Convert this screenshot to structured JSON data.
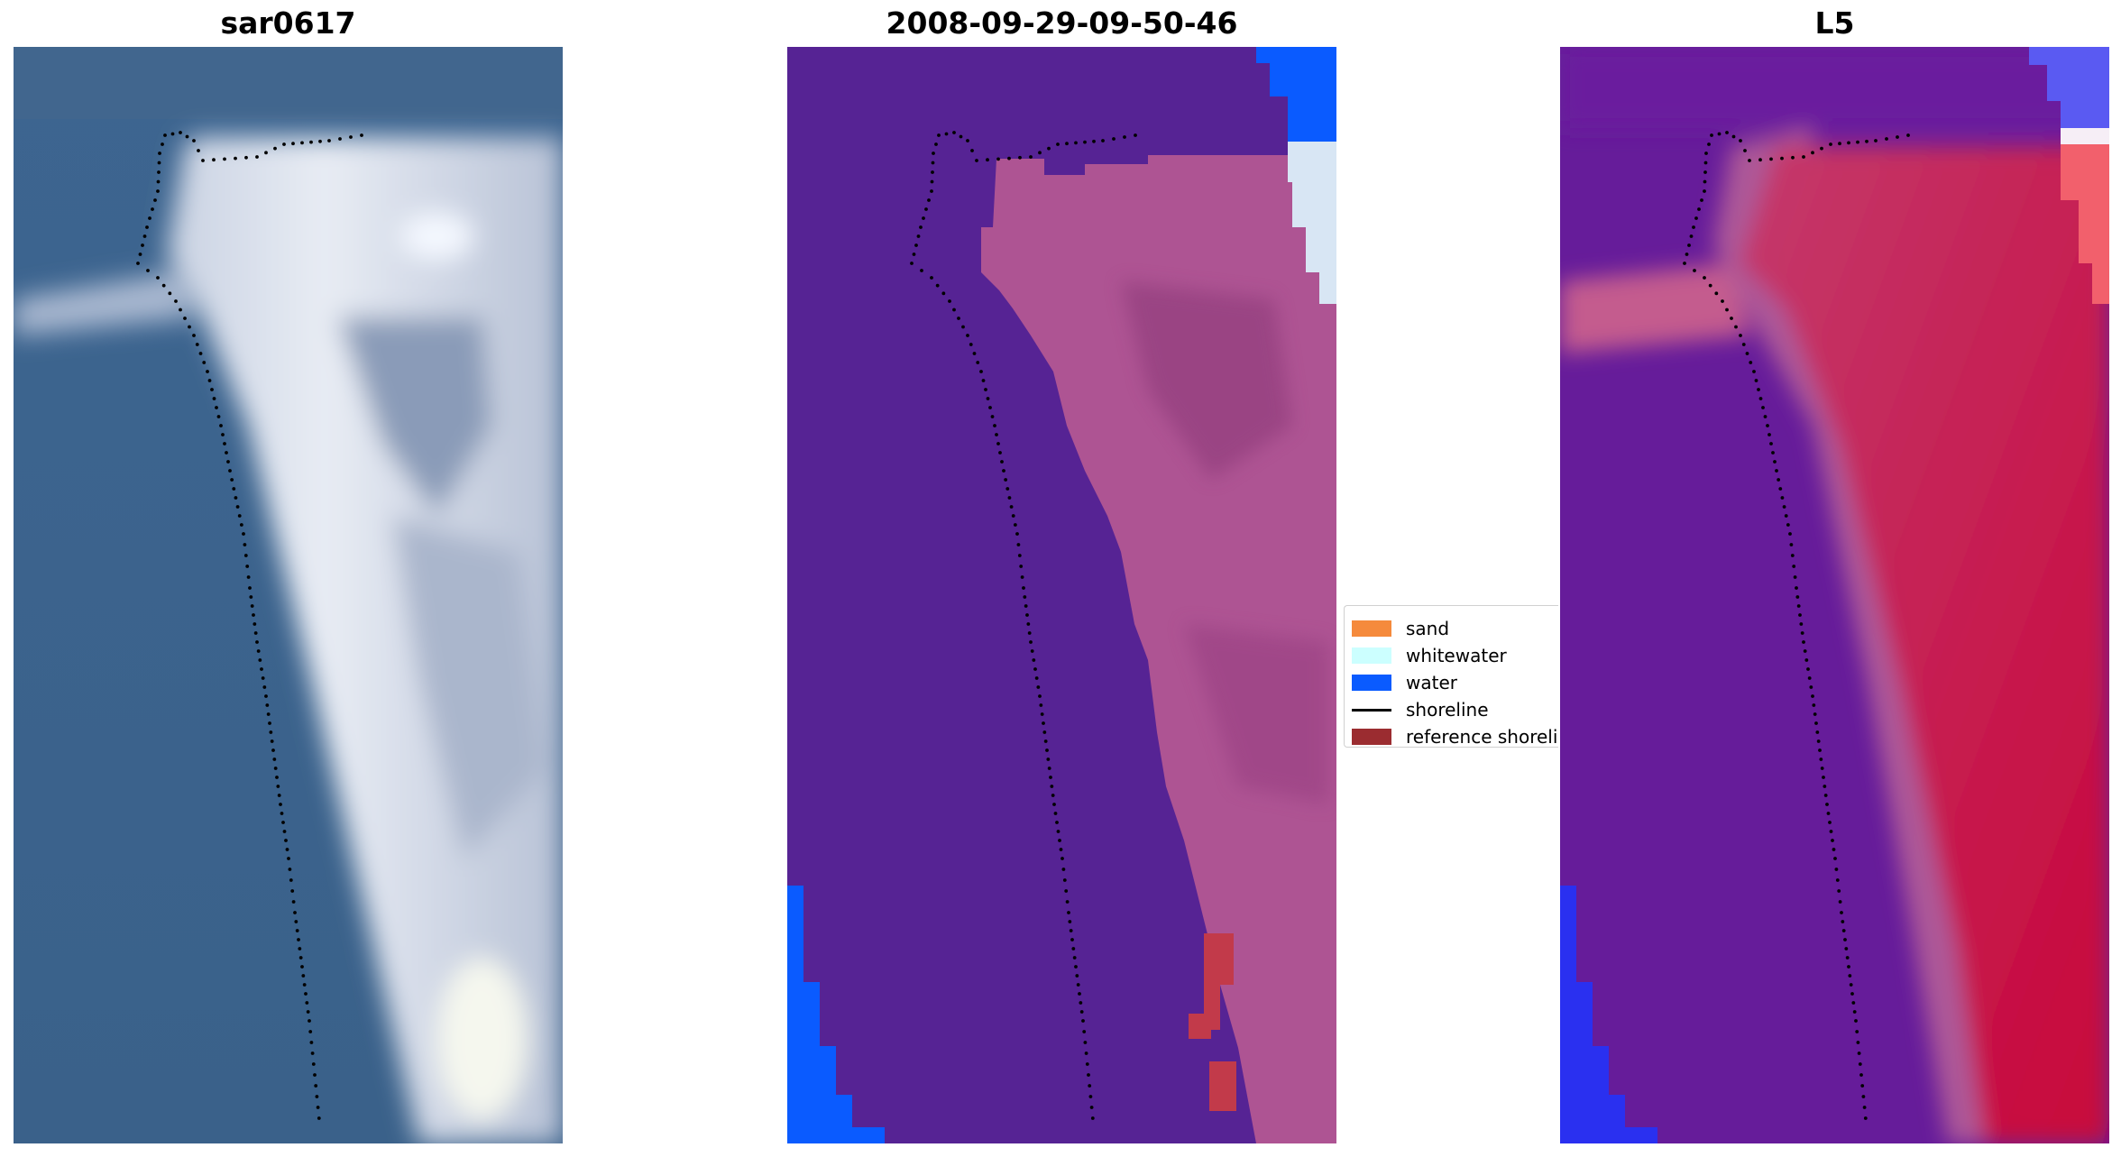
{
  "panels": {
    "rgb": {
      "title": "sar0617"
    },
    "classification": {
      "title": "2008-09-29-09-50-46"
    },
    "l5": {
      "title": "L5"
    }
  },
  "legend": {
    "placement": "center-right of middle panel",
    "items": [
      {
        "label": "sand",
        "color": "#f58a3c",
        "kind": "patch"
      },
      {
        "label": "whitewater",
        "color": "#ccffff",
        "kind": "patch"
      },
      {
        "label": "water",
        "color": "#0a5bff",
        "kind": "patch"
      },
      {
        "label": "shoreline",
        "color": "#000000",
        "kind": "line"
      },
      {
        "label": "reference shoreline",
        "color": "#9b2c30",
        "kind": "patch"
      }
    ]
  },
  "colors": {
    "rgb_water": "#3a6490",
    "rgb_sand": "#dfe3ee",
    "class_background": "#562394",
    "class_sand_overlay": "#b35896",
    "class_water": "#0a5bff",
    "l5_background": "#661c9a",
    "l5_land": "#cc1e46",
    "shoreline": "#000000"
  }
}
